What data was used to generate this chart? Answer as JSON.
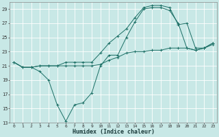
{
  "xlabel": "Humidex (Indice chaleur)",
  "bg_color": "#c8e8e6",
  "grid_color": "#ffffff",
  "line_color": "#1a6e64",
  "xlim": [
    -0.5,
    23.5
  ],
  "ylim": [
    13,
    30
  ],
  "yticks": [
    13,
    15,
    17,
    19,
    21,
    23,
    25,
    27,
    29
  ],
  "xticks": [
    0,
    1,
    2,
    3,
    4,
    5,
    6,
    7,
    8,
    9,
    10,
    11,
    12,
    13,
    14,
    15,
    16,
    17,
    18,
    19,
    20,
    21,
    22,
    23
  ],
  "line1_x": [
    0,
    1,
    2,
    3,
    4,
    5,
    6,
    7,
    8,
    9,
    10,
    11,
    12,
    13,
    14,
    15,
    16,
    17,
    18,
    19,
    20,
    21,
    22,
    23
  ],
  "line1_y": [
    21.5,
    20.8,
    20.8,
    21.0,
    21.0,
    21.0,
    21.0,
    21.0,
    21.0,
    21.0,
    21.2,
    21.8,
    22.2,
    22.8,
    23.0,
    23.0,
    23.2,
    23.2,
    23.5,
    23.5,
    23.5,
    23.2,
    23.5,
    24.0
  ],
  "line2_x": [
    0,
    1,
    2,
    3,
    4,
    5,
    6,
    7,
    8,
    9,
    10,
    11,
    12,
    13,
    14,
    15,
    16,
    17,
    18,
    19,
    20,
    21,
    22,
    23
  ],
  "line2_y": [
    21.5,
    20.8,
    20.8,
    20.2,
    19.0,
    15.5,
    13.2,
    15.5,
    15.8,
    17.2,
    21.0,
    22.5,
    22.5,
    25.0,
    27.2,
    29.0,
    29.2,
    29.2,
    28.8,
    27.0,
    23.5,
    23.2,
    23.5,
    24.2
  ],
  "line3_x": [
    0,
    1,
    2,
    3,
    4,
    5,
    6,
    7,
    8,
    9,
    10,
    11,
    12,
    13,
    14,
    15,
    16,
    17,
    18,
    19,
    20,
    21,
    22,
    23
  ],
  "line3_y": [
    21.5,
    20.8,
    20.8,
    21.0,
    21.0,
    21.0,
    21.5,
    21.5,
    21.5,
    21.5,
    22.8,
    24.2,
    25.2,
    26.2,
    27.8,
    29.2,
    29.5,
    29.5,
    29.2,
    26.8,
    27.0,
    23.5,
    23.5,
    24.2
  ]
}
